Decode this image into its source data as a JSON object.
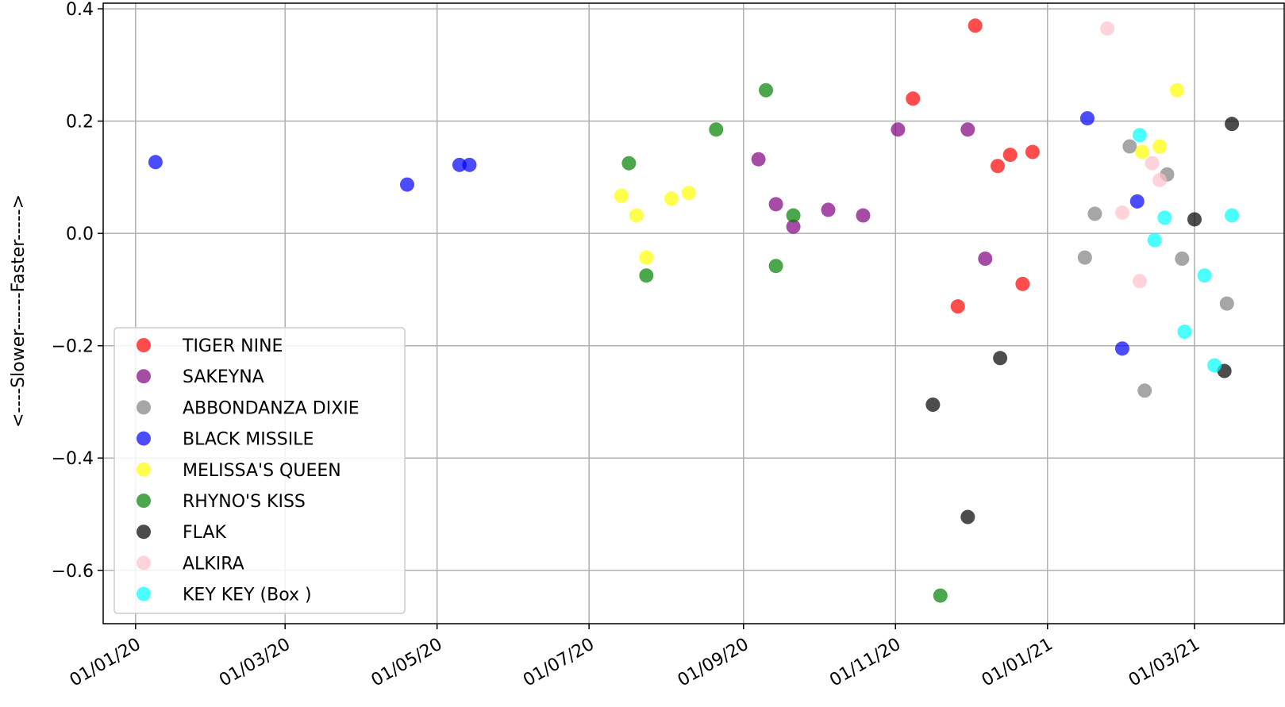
{
  "chart_data": {
    "type": "scatter",
    "title": "",
    "xlabel": "",
    "ylabel": "<----Slower------Faster----->",
    "x_type": "date",
    "xlim": [
      "2019-12-19",
      "2021-04-06"
    ],
    "ylim": [
      -0.695,
      0.41
    ],
    "grid": true,
    "legend_position": "lower-left",
    "x_ticks": [
      {
        "date": "2020-01-01",
        "label": "01/01/20"
      },
      {
        "date": "2020-03-01",
        "label": "01/03/20"
      },
      {
        "date": "2020-05-01",
        "label": "01/05/20"
      },
      {
        "date": "2020-07-01",
        "label": "01/07/20"
      },
      {
        "date": "2020-09-01",
        "label": "01/09/20"
      },
      {
        "date": "2020-11-01",
        "label": "01/11/20"
      },
      {
        "date": "2021-01-01",
        "label": "01/01/21"
      },
      {
        "date": "2021-03-01",
        "label": "01/03/21"
      }
    ],
    "y_ticks": [
      {
        "value": 0.4,
        "label": "0.4"
      },
      {
        "value": 0.2,
        "label": "0.2"
      },
      {
        "value": 0.0,
        "label": "0.0"
      },
      {
        "value": -0.2,
        "label": "−0.2"
      },
      {
        "value": -0.4,
        "label": "−0.4"
      },
      {
        "value": -0.6,
        "label": "−0.6"
      }
    ],
    "series": [
      {
        "name": "TIGER NINE",
        "color": "#ff0000",
        "points": [
          {
            "x": "2020-11-08",
            "y": 0.24
          },
          {
            "x": "2020-11-26",
            "y": -0.13
          },
          {
            "x": "2020-12-03",
            "y": 0.37
          },
          {
            "x": "2020-12-12",
            "y": 0.12
          },
          {
            "x": "2020-12-17",
            "y": 0.14
          },
          {
            "x": "2020-12-22",
            "y": -0.09
          },
          {
            "x": "2020-12-26",
            "y": 0.145
          }
        ]
      },
      {
        "name": "SAKEYNA",
        "color": "#800080",
        "points": [
          {
            "x": "2020-09-07",
            "y": 0.132
          },
          {
            "x": "2020-09-14",
            "y": 0.052
          },
          {
            "x": "2020-09-21",
            "y": 0.012
          },
          {
            "x": "2020-10-05",
            "y": 0.042
          },
          {
            "x": "2020-10-19",
            "y": 0.032
          },
          {
            "x": "2020-11-02",
            "y": 0.185
          },
          {
            "x": "2020-11-30",
            "y": 0.185
          },
          {
            "x": "2020-12-07",
            "y": -0.045
          }
        ]
      },
      {
        "name": "ABBONDANZA DIXIE",
        "color": "#808080",
        "points": [
          {
            "x": "2021-01-16",
            "y": -0.043
          },
          {
            "x": "2021-01-20",
            "y": 0.035
          },
          {
            "x": "2021-02-03",
            "y": 0.155
          },
          {
            "x": "2021-02-09",
            "y": -0.28
          },
          {
            "x": "2021-02-18",
            "y": 0.105
          },
          {
            "x": "2021-02-24",
            "y": -0.045
          },
          {
            "x": "2021-03-14",
            "y": -0.125
          }
        ]
      },
      {
        "name": "BLACK MISSILE",
        "color": "#0000ff",
        "points": [
          {
            "x": "2020-01-09",
            "y": 0.127
          },
          {
            "x": "2020-04-19",
            "y": 0.087
          },
          {
            "x": "2020-05-10",
            "y": 0.122
          },
          {
            "x": "2020-05-14",
            "y": 0.122
          },
          {
            "x": "2021-01-17",
            "y": 0.205
          },
          {
            "x": "2021-01-31",
            "y": -0.205
          },
          {
            "x": "2021-02-06",
            "y": 0.057
          }
        ]
      },
      {
        "name": "MELISSA'S QUEEN",
        "color": "#ffff00",
        "points": [
          {
            "x": "2020-07-14",
            "y": 0.067
          },
          {
            "x": "2020-07-20",
            "y": 0.032
          },
          {
            "x": "2020-07-24",
            "y": -0.043
          },
          {
            "x": "2020-08-03",
            "y": 0.062
          },
          {
            "x": "2020-08-10",
            "y": 0.072
          },
          {
            "x": "2021-02-08",
            "y": 0.145
          },
          {
            "x": "2021-02-15",
            "y": 0.155
          },
          {
            "x": "2021-02-22",
            "y": 0.255
          }
        ]
      },
      {
        "name": "RHYNO'S KISS",
        "color": "#008000",
        "points": [
          {
            "x": "2020-07-17",
            "y": 0.125
          },
          {
            "x": "2020-07-24",
            "y": -0.075
          },
          {
            "x": "2020-08-21",
            "y": 0.185
          },
          {
            "x": "2020-09-10",
            "y": 0.255
          },
          {
            "x": "2020-09-14",
            "y": -0.058
          },
          {
            "x": "2020-09-21",
            "y": 0.032
          },
          {
            "x": "2020-11-19",
            "y": -0.645
          }
        ]
      },
      {
        "name": "FLAK",
        "color": "#000000",
        "points": [
          {
            "x": "2020-11-16",
            "y": -0.305
          },
          {
            "x": "2020-11-30",
            "y": -0.505
          },
          {
            "x": "2020-12-13",
            "y": -0.222
          },
          {
            "x": "2021-03-01",
            "y": 0.025
          },
          {
            "x": "2021-03-13",
            "y": -0.245
          },
          {
            "x": "2021-03-16",
            "y": 0.195
          }
        ]
      },
      {
        "name": "ALKIRA",
        "color": "#ffc0cb",
        "points": [
          {
            "x": "2021-01-25",
            "y": 0.365
          },
          {
            "x": "2021-01-31",
            "y": 0.037
          },
          {
            "x": "2021-02-07",
            "y": -0.085
          },
          {
            "x": "2021-02-12",
            "y": 0.125
          },
          {
            "x": "2021-02-15",
            "y": 0.095
          }
        ]
      },
      {
        "name": "KEY KEY (Box )",
        "color": "#00ffff",
        "points": [
          {
            "x": "2021-02-07",
            "y": 0.175
          },
          {
            "x": "2021-02-13",
            "y": -0.012
          },
          {
            "x": "2021-02-17",
            "y": 0.028
          },
          {
            "x": "2021-02-25",
            "y": -0.175
          },
          {
            "x": "2021-03-05",
            "y": -0.075
          },
          {
            "x": "2021-03-09",
            "y": -0.235
          },
          {
            "x": "2021-03-16",
            "y": 0.032
          }
        ]
      }
    ]
  }
}
